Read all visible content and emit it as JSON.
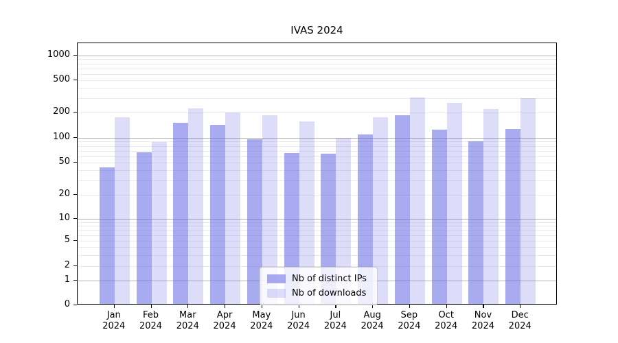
{
  "title": "IVAS 2024",
  "legend": {
    "items": [
      {
        "label": "Nb of distinct IPs",
        "color": "rgba(99,102,227,0.55)"
      },
      {
        "label": "Nb of downloads",
        "color": "rgba(99,102,227,0.22)"
      }
    ]
  },
  "colors": {
    "bar_distinct_ips": "rgba(99,102,227,0.55)",
    "bar_downloads": "rgba(99,102,227,0.22)",
    "grid_major": "#b0b0b0",
    "grid_minor": "#e9e9ec",
    "axis": "#000000"
  },
  "y_axis": {
    "tick_values": [
      0,
      1,
      2,
      5,
      10,
      20,
      50,
      100,
      200,
      500,
      1000
    ],
    "tick_labels": [
      "0",
      "1",
      "2",
      "5",
      "10",
      "20",
      "50",
      "100",
      "200",
      "500",
      "1000"
    ],
    "major_gridlines": [
      1,
      10,
      100,
      1000
    ],
    "minor_gridlines": [
      2,
      3,
      4,
      5,
      6,
      7,
      8,
      9,
      20,
      30,
      40,
      50,
      60,
      70,
      80,
      90,
      200,
      300,
      400,
      500,
      600,
      700,
      800,
      900
    ]
  },
  "x_axis": {
    "labels": [
      {
        "month": "Jan",
        "year": "2024"
      },
      {
        "month": "Feb",
        "year": "2024"
      },
      {
        "month": "Mar",
        "year": "2024"
      },
      {
        "month": "Apr",
        "year": "2024"
      },
      {
        "month": "May",
        "year": "2024"
      },
      {
        "month": "Jun",
        "year": "2024"
      },
      {
        "month": "Jul",
        "year": "2024"
      },
      {
        "month": "Aug",
        "year": "2024"
      },
      {
        "month": "Sep",
        "year": "2024"
      },
      {
        "month": "Oct",
        "year": "2024"
      },
      {
        "month": "Nov",
        "year": "2024"
      },
      {
        "month": "Dec",
        "year": "2024"
      }
    ]
  },
  "chart_data": {
    "type": "bar",
    "title": "IVAS 2024",
    "categories": [
      "Jan 2024",
      "Feb 2024",
      "Mar 2024",
      "Apr 2024",
      "May 2024",
      "Jun 2024",
      "Jul 2024",
      "Aug 2024",
      "Sep 2024",
      "Oct 2024",
      "Nov 2024",
      "Dec 2024"
    ],
    "series": [
      {
        "name": "Nb of distinct IPs",
        "values": [
          42,
          64,
          145,
          138,
          93,
          63,
          62,
          106,
          180,
          121,
          87,
          123
        ]
      },
      {
        "name": "Nb of downloads",
        "values": [
          170,
          85,
          215,
          193,
          178,
          152,
          96,
          170,
          295,
          253,
          212,
          290
        ]
      }
    ],
    "xlabel": "",
    "ylabel": "",
    "yscale": "log-like (asinh/symlog, zero at baseline)",
    "ylim": [
      0,
      1450
    ],
    "yticks": [
      0,
      1,
      2,
      5,
      10,
      20,
      50,
      100,
      200,
      500,
      1000
    ],
    "grid": "horizontal major + minor",
    "legend_position": "lower center"
  }
}
